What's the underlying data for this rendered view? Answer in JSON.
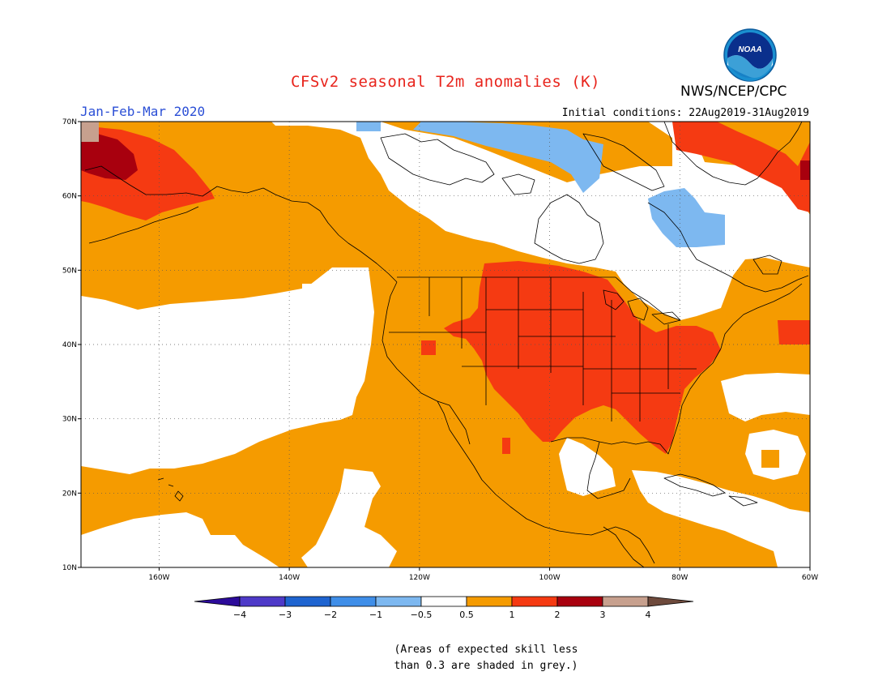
{
  "title": "CFSv2 seasonal T2m anomalies (K)",
  "agency": "NWS/NCEP/CPC",
  "logo_text": "NOAA",
  "period": "Jan-Feb-Mar 2020",
  "initial_conditions": "Initial conditions: 22Aug2019-31Aug2019",
  "footnote_lines": [
    "(Areas of expected skill less",
    "than 0.3 are shaded in grey.)"
  ],
  "map": {
    "lon_range": [
      -172,
      -60
    ],
    "lat_range": [
      10,
      70
    ],
    "lon_ticks": [
      {
        "value": -160,
        "label": "160W"
      },
      {
        "value": -140,
        "label": "140W"
      },
      {
        "value": -120,
        "label": "120W"
      },
      {
        "value": -100,
        "label": "100W"
      },
      {
        "value": -80,
        "label": "80W"
      },
      {
        "value": -60,
        "label": "60W"
      }
    ],
    "lat_ticks": [
      {
        "value": 10,
        "label": "10N"
      },
      {
        "value": 20,
        "label": "20N"
      },
      {
        "value": 30,
        "label": "30N"
      },
      {
        "value": 40,
        "label": "40N"
      },
      {
        "value": 50,
        "label": "50N"
      },
      {
        "value": 60,
        "label": "60N"
      },
      {
        "value": 70,
        "label": "70N"
      }
    ]
  },
  "colorbar": {
    "bins": [
      {
        "color": "#2c0b9a"
      },
      {
        "color": "#4e3ac8"
      },
      {
        "color": "#1e64d0"
      },
      {
        "color": "#3f8ee8"
      },
      {
        "color": "#7db8f0"
      },
      {
        "color": "#ffffff"
      },
      {
        "color": "#f59b00"
      },
      {
        "color": "#f53a12"
      },
      {
        "color": "#a8000e"
      },
      {
        "color": "#c7a08e"
      },
      {
        "color": "#6e4a3c"
      }
    ],
    "labels": [
      "−4",
      "−3",
      "−2",
      "−1",
      "−0.5",
      "0.5",
      "1",
      "2",
      "3",
      "4"
    ]
  },
  "colors": {
    "white": "#ffffff",
    "orange": "#f59b00",
    "red": "#f53a12",
    "darkred": "#a8000e",
    "tan": "#c7a08e",
    "lightblue": "#7db8f0"
  }
}
